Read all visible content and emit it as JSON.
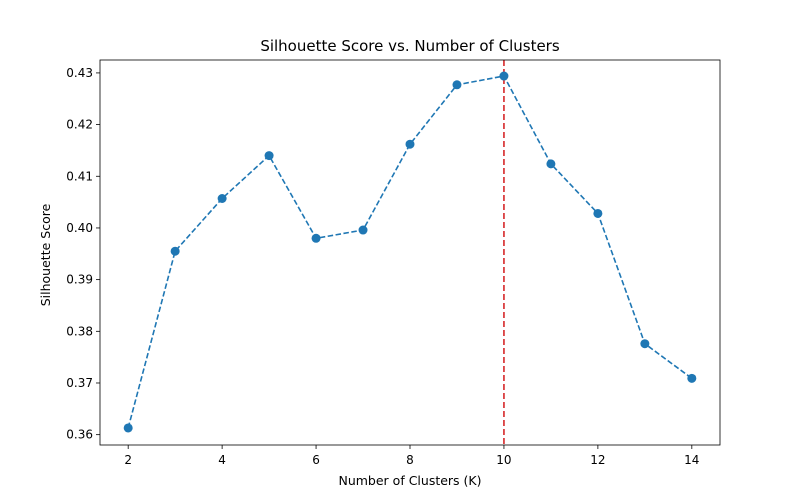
{
  "chart_data": {
    "type": "line",
    "title": "Silhouette Score vs. Number of Clusters",
    "xlabel": "Number of Clusters (K)",
    "ylabel": "Silhouette Score",
    "x": [
      2,
      3,
      4,
      5,
      6,
      7,
      8,
      9,
      10,
      11,
      12,
      13,
      14
    ],
    "series": [
      {
        "values": [
          0.3613,
          0.3955,
          0.4057,
          0.414,
          0.398,
          0.3996,
          0.4162,
          0.4277,
          0.4294,
          0.4124,
          0.4028,
          0.3776,
          0.3709
        ],
        "color": "#1f77b4",
        "line_style": "dashed",
        "marker": "circle"
      }
    ],
    "xlim": [
      1.4,
      14.6
    ],
    "ylim": [
      0.358,
      0.4325
    ],
    "xticks": [
      2,
      4,
      6,
      8,
      10,
      12,
      14
    ],
    "xtick_labels": [
      "2",
      "4",
      "6",
      "8",
      "10",
      "12",
      "14"
    ],
    "yticks": [
      0.36,
      0.37,
      0.38,
      0.39,
      0.4,
      0.41,
      0.42,
      0.43
    ],
    "ytick_labels": [
      "0.36",
      "0.37",
      "0.38",
      "0.39",
      "0.40",
      "0.41",
      "0.42",
      "0.43"
    ],
    "reference_lines": [
      {
        "orientation": "vertical",
        "x": 10,
        "color": "#d62728",
        "line_style": "dashed"
      }
    ],
    "grid": false,
    "legend": "none"
  }
}
